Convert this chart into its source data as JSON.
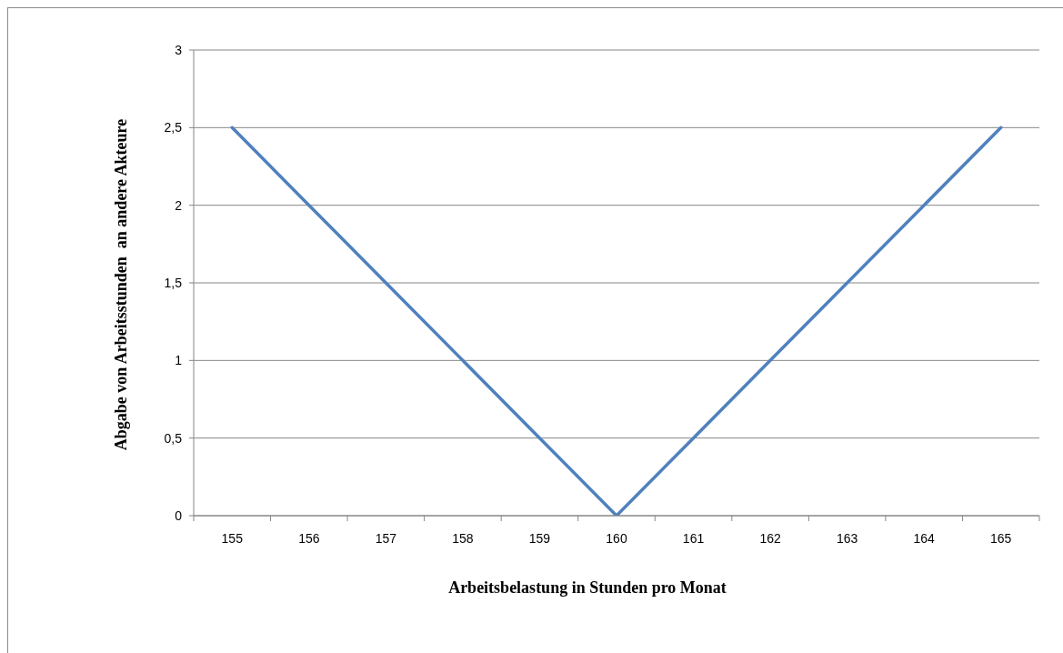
{
  "chart_data": {
    "type": "line",
    "xlabel": "Arbeitsbelastung in Stunden pro Monat",
    "ylabel": "Abgabe von Arbeitsstunden  an andere Akteure",
    "categories": [
      "155",
      "156",
      "157",
      "158",
      "159",
      "160",
      "161",
      "162",
      "163",
      "164",
      "165"
    ],
    "series": [
      {
        "color": "#4f81bd",
        "values": [
          2.5,
          2,
          1.5,
          1,
          0.5,
          0,
          0.5,
          1,
          1.5,
          2,
          2.5
        ]
      }
    ],
    "ylim": [
      0,
      3
    ],
    "yticks": [
      0,
      {
        "value": 0.5,
        "label": "0,5"
      },
      1,
      {
        "value": 1.5,
        "label": "1,5"
      },
      2,
      {
        "value": 2.5,
        "label": "2,5"
      },
      3
    ],
    "grid": "y",
    "marker": "none",
    "line_style": "solid"
  }
}
